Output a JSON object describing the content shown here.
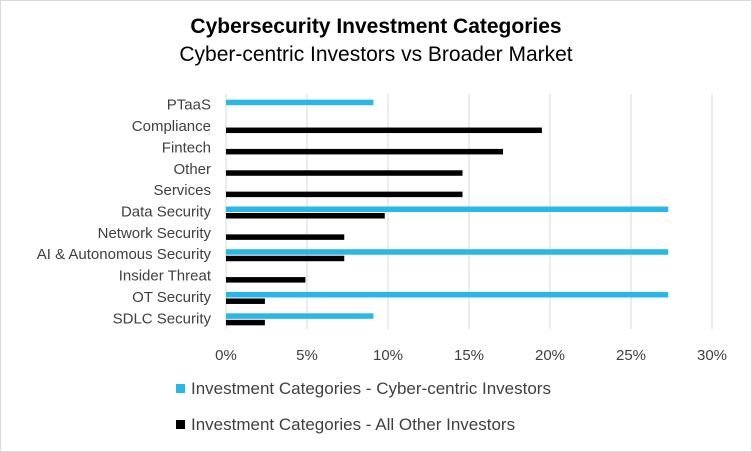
{
  "chart_data": {
    "type": "bar",
    "orientation": "horizontal",
    "title": "Cybersecurity Investment Categories",
    "subtitle": "Cyber-centric Investors vs Broader Market",
    "categories": [
      "PTaaS",
      "Compliance",
      "Fintech",
      "Other",
      "Services",
      "Data Security",
      "Network Security",
      "AI & Autonomous Security",
      "Insider Threat",
      "OT Security",
      "SDLC Security"
    ],
    "series": [
      {
        "name": "Investment Categories - Cyber-centric Investors",
        "color": "#29b6e8",
        "values": [
          0.091,
          0,
          0,
          0,
          0,
          0.273,
          0,
          0.273,
          0,
          0.273,
          0.091
        ]
      },
      {
        "name": "Investment Categories - All Other Investors",
        "color": "#000000",
        "values": [
          0,
          0.195,
          0.171,
          0.146,
          0.146,
          0.098,
          0.073,
          0.073,
          0.049,
          0.024,
          0.024
        ]
      }
    ],
    "xlim": [
      0,
      0.3
    ],
    "xticks": [
      0,
      0.05,
      0.1,
      0.15,
      0.2,
      0.25,
      0.3
    ],
    "xtick_labels": [
      "0%",
      "5%",
      "10%",
      "15%",
      "20%",
      "25%",
      "30%"
    ],
    "grid": "vertical",
    "legend_position": "bottom"
  }
}
